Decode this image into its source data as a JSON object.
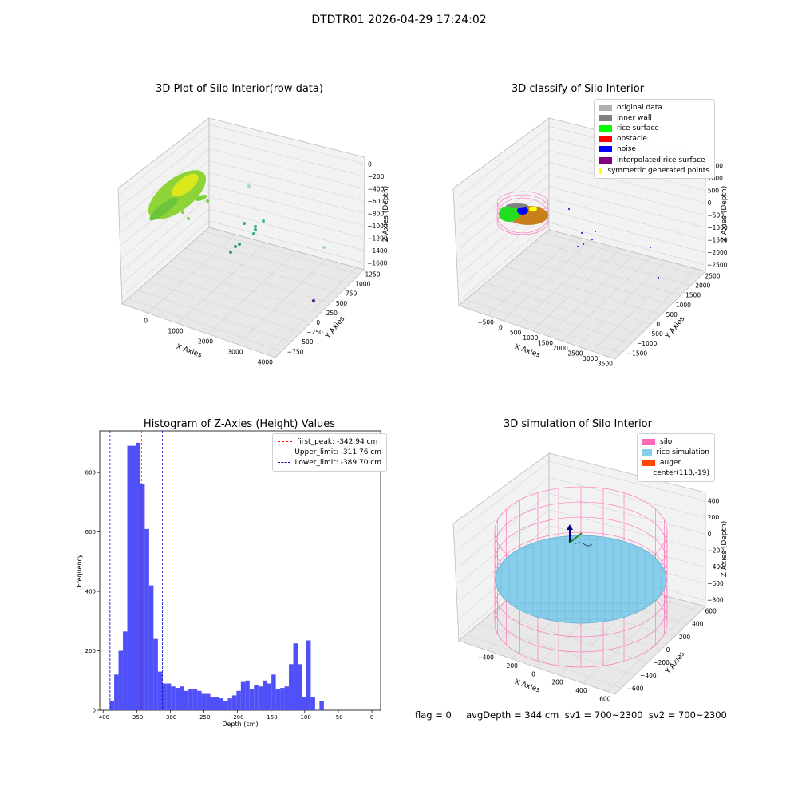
{
  "suptitle": "DTDTR01 2026-04-29 17:24:02",
  "colors": {
    "histogram_bar": "#5050f8",
    "first_peak_line": "#ff0000",
    "limit_lines": "#0000cc",
    "silo": "#ff69b4",
    "rice_simulation": "#87ceeb",
    "auger": "#ff4500",
    "original_data": "#b0b0b0",
    "inner_wall": "#808080",
    "rice_surface": "#00ff00",
    "obstacle": "#ff0000",
    "noise": "#0000ff",
    "interpolated_rice_surface": "#800080",
    "symmetric_generated_points": "#ffff00"
  },
  "panel1": {
    "title": "3D Plot of Silo Interior(row data)",
    "xlabel": "X Axies",
    "ylabel": "Y Axies",
    "zlabel": "Z Axies (Depth)",
    "x_ticks": [
      "0",
      "1000",
      "2000",
      "3000",
      "4000"
    ],
    "y_ticks": [
      "1250",
      "1000",
      "750",
      "500",
      "250",
      "0",
      "−250",
      "−500",
      "−750"
    ],
    "z_ticks": [
      "0",
      "−200",
      "−400",
      "−600",
      "−800",
      "−1000",
      "−1200",
      "−1400",
      "−1600"
    ]
  },
  "panel2": {
    "title": "3D classify of Silo Interior",
    "xlabel": "X Axies",
    "ylabel": "Y Axies",
    "zlabel": "Z Axies (Depth)",
    "x_ticks": [
      "−500",
      "0",
      "500",
      "1000",
      "1500",
      "2000",
      "2500",
      "3000",
      "3500"
    ],
    "y_ticks": [
      "2500",
      "2000",
      "1500",
      "1000",
      "500",
      "0",
      "−500",
      "−1000",
      "−1500"
    ],
    "z_ticks": [
      "1500",
      "1000",
      "500",
      "0",
      "−500",
      "−1000",
      "−1500",
      "−2000",
      "−2500"
    ],
    "legend": [
      {
        "label": "original data",
        "color": "#b0b0b0"
      },
      {
        "label": "inner wall",
        "color": "#808080"
      },
      {
        "label": "rice surface",
        "color": "#00ff00"
      },
      {
        "label": "obstacle",
        "color": "#ff0000"
      },
      {
        "label": "noise",
        "color": "#0000ff"
      },
      {
        "label": "interpolated rice surface",
        "color": "#800080"
      },
      {
        "label": "symmetric generated points",
        "color": "#ffff00"
      }
    ]
  },
  "panel4": {
    "title": "3D simulation of Silo Interior",
    "xlabel": "X Axies",
    "ylabel": "Y Axies",
    "zlabel": "Z Axies (Depth)",
    "x_ticks": [
      "−400",
      "−200",
      "0",
      "200",
      "400",
      "600"
    ],
    "y_ticks": [
      "600",
      "400",
      "200",
      "0",
      "−200",
      "−400",
      "−600"
    ],
    "z_ticks": [
      "400",
      "200",
      "0",
      "−200",
      "−400",
      "−600",
      "−800"
    ],
    "legend": [
      {
        "label": "silo",
        "color": "#ff69b4"
      },
      {
        "label": "rice simulation",
        "color": "#87ceeb"
      },
      {
        "label": "auger",
        "color": "#ff4500"
      },
      {
        "label": "center(118,-19)",
        "color": ""
      }
    ]
  },
  "status_text": "flag = 0     avgDepth = 344 cm  sv1 = 700~2300  sv2 = 700~2300",
  "chart_data": [
    {
      "type": "bar",
      "title": "Histogram of Z-Axies (Height) Values",
      "xlabel": "Depth (cm)",
      "ylabel": "Frequency",
      "xlim": [
        -405,
        13
      ],
      "ylim": [
        0,
        940
      ],
      "x_ticks": [
        -400,
        -350,
        -300,
        -250,
        -200,
        -150,
        -100,
        -50,
        0
      ],
      "y_ticks": [
        0,
        200,
        400,
        600,
        800
      ],
      "bin_start": -390,
      "bin_width": 6.5,
      "values": [
        30,
        120,
        200,
        265,
        890,
        890,
        900,
        760,
        610,
        420,
        240,
        130,
        90,
        90,
        80,
        75,
        80,
        65,
        70,
        70,
        65,
        55,
        55,
        45,
        45,
        40,
        30,
        40,
        50,
        65,
        95,
        100,
        70,
        85,
        80,
        100,
        90,
        120,
        70,
        75,
        80,
        155,
        225,
        155,
        45,
        235,
        45,
        0,
        30
      ],
      "bar_color": "#5050f8",
      "lines": [
        {
          "label": "first_peak: -342.94 cm",
          "x": -342.94,
          "color": "#ff0000"
        },
        {
          "label": "Upper_limit: -311.76 cm",
          "x": -311.76,
          "color": "#0000cc"
        },
        {
          "label": "Lower_limit: -389.70 cm",
          "x": -389.7,
          "color": "#0000cc"
        }
      ]
    }
  ]
}
